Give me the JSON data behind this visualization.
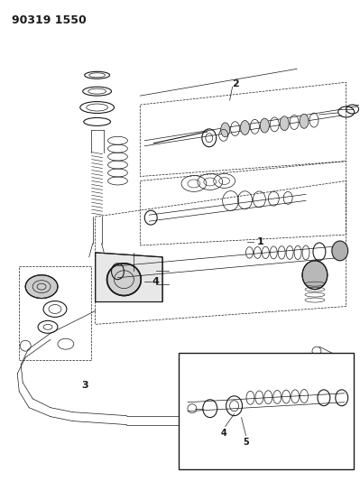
{
  "title_code": "90319 1550",
  "bg_color": "#ffffff",
  "line_color": "#1a1a1a",
  "fig_width": 3.99,
  "fig_height": 5.33,
  "dpi": 100,
  "title_fontsize": 9,
  "label_fontsize": 8,
  "label_fontsize_sm": 7,
  "lw_thin": 0.5,
  "lw_med": 0.8,
  "lw_thick": 1.1
}
